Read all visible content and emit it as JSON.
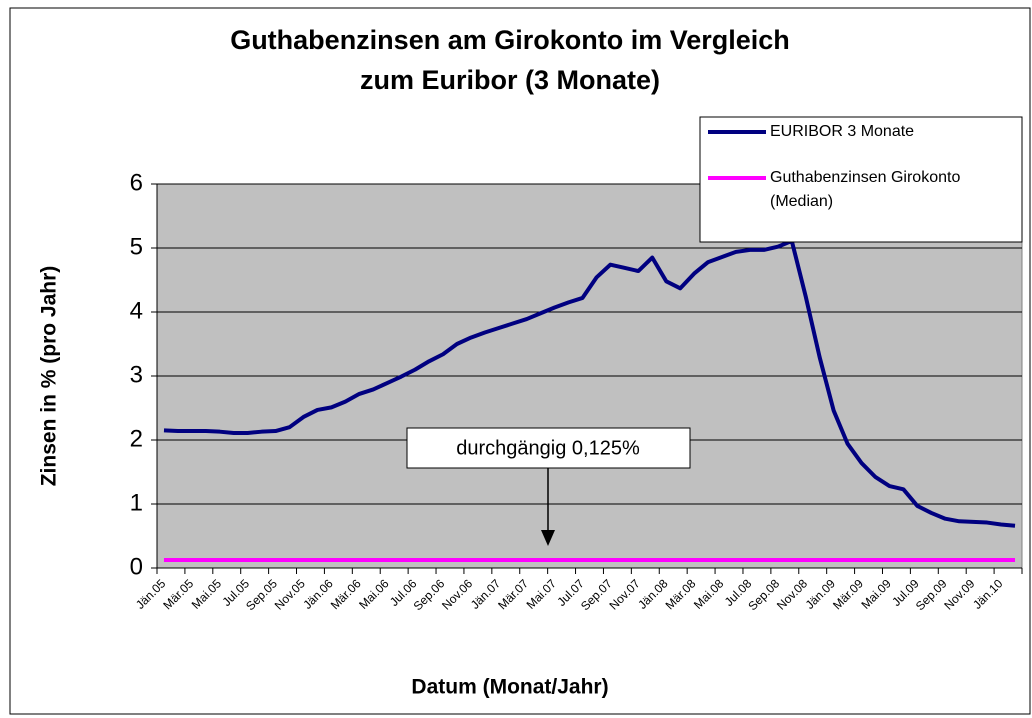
{
  "chart_data": {
    "type": "line",
    "title": [
      "Guthabenzinsen am Girokonto im Vergleich",
      "zum Euribor (3 Monate)"
    ],
    "x_label": "Datum (Monat/Jahr)",
    "y_label": "Zinsen in % (pro Jahr)",
    "annotation": "durchgängig 0,125%",
    "categories": [
      "Jän.05",
      null,
      "Mär.05",
      null,
      "Mai.05",
      null,
      "Jul.05",
      null,
      "Sep.05",
      null,
      "Nov.05",
      null,
      "Jän.06",
      null,
      "Mär.06",
      null,
      "Mai.06",
      null,
      "Jul.06",
      null,
      "Sep.06",
      null,
      "Nov.06",
      null,
      "Jän.07",
      null,
      "Mär.07",
      null,
      "Mai.07",
      null,
      "Jul.07",
      null,
      "Sep.07",
      null,
      "Nov.07",
      null,
      "Jän.08",
      null,
      "Mär.08",
      null,
      "Mai.08",
      null,
      "Jul.08",
      null,
      "Sep.08",
      null,
      "Nov.08",
      null,
      "Jän.09",
      null,
      "Mär.09",
      null,
      "Mai.09",
      null,
      "Jul.09",
      null,
      "Sep.09",
      null,
      "Nov.09",
      null,
      "Jän.10",
      null
    ],
    "series": [
      {
        "name": "EURIBOR 3 Monate",
        "color": "#000080",
        "values": [
          2.15,
          2.14,
          2.14,
          2.14,
          2.13,
          2.11,
          2.11,
          2.13,
          2.14,
          2.2,
          2.36,
          2.47,
          2.51,
          2.6,
          2.72,
          2.79,
          2.89,
          2.99,
          3.1,
          3.23,
          3.34,
          3.5,
          3.6,
          3.68,
          3.75,
          3.82,
          3.89,
          3.98,
          4.07,
          4.15,
          4.22,
          4.54,
          4.74,
          4.69,
          4.64,
          4.85,
          4.48,
          4.37,
          4.6,
          4.78,
          4.86,
          4.94,
          4.97,
          4.97,
          5.02,
          5.11,
          4.24,
          3.29,
          2.46,
          1.94,
          1.64,
          1.42,
          1.28,
          1.23,
          0.97,
          0.86,
          0.77,
          0.73,
          0.72,
          0.71,
          0.68,
          0.66
        ]
      },
      {
        "name": "Guthabenzinsen Girokonto (Median)",
        "color": "#ff00ff",
        "values": [
          0.125,
          0.125,
          0.125,
          0.125,
          0.125,
          0.125,
          0.125,
          0.125,
          0.125,
          0.125,
          0.125,
          0.125,
          0.125,
          0.125,
          0.125,
          0.125,
          0.125,
          0.125,
          0.125,
          0.125,
          0.125,
          0.125,
          0.125,
          0.125,
          0.125,
          0.125,
          0.125,
          0.125,
          0.125,
          0.125,
          0.125,
          0.125,
          0.125,
          0.125,
          0.125,
          0.125,
          0.125,
          0.125,
          0.125,
          0.125,
          0.125,
          0.125,
          0.125,
          0.125,
          0.125,
          0.125,
          0.125,
          0.125,
          0.125,
          0.125,
          0.125,
          0.125,
          0.125,
          0.125,
          0.125,
          0.125,
          0.125,
          0.125,
          0.125,
          0.125,
          0.125,
          0.125
        ]
      }
    ],
    "ylim": [
      0,
      6
    ],
    "yticks": [
      0,
      1,
      2,
      3,
      4,
      5,
      6
    ],
    "grid": true,
    "legend": "top-right",
    "plot_color": "#c0c0c0"
  }
}
